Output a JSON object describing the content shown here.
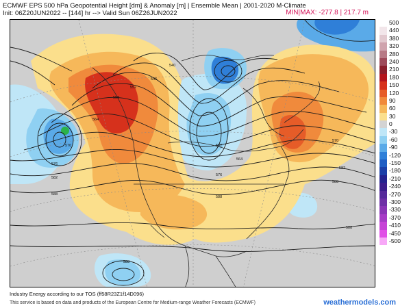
{
  "header": {
    "title": "ECMWF EPS 500 hPa Geopotential Height [dm] & Anomaly [m] | Ensemble Mean | 2001-2020 M-Climate",
    "init": "Init: 06Z20JUN2022 -- [144] hr --> Valid Sun 06Z26JUN2022",
    "minmax": "MIN|MAX: -277.8 | 217.7 m"
  },
  "legend": {
    "entries": [
      {
        "label": "500",
        "color": "#ffffff"
      },
      {
        "label": "440",
        "color": "#f2e6ea"
      },
      {
        "label": "380",
        "color": "#e2c9cf"
      },
      {
        "label": "320",
        "color": "#cfa3ad"
      },
      {
        "label": "280",
        "color": "#b77a86"
      },
      {
        "label": "240",
        "color": "#9e4a5a"
      },
      {
        "label": "210",
        "color": "#8b1e2c"
      },
      {
        "label": "180",
        "color": "#b3141d"
      },
      {
        "label": "150",
        "color": "#d6311c"
      },
      {
        "label": "120",
        "color": "#e65c28"
      },
      {
        "label": "90",
        "color": "#f08a3c"
      },
      {
        "label": "60",
        "color": "#f6b85a"
      },
      {
        "label": "30",
        "color": "#fbdf8c"
      },
      {
        "label": "0",
        "color": "#d3d3d3"
      },
      {
        "label": "-30",
        "color": "#bfe6f7"
      },
      {
        "label": "-60",
        "color": "#8fd0f2"
      },
      {
        "label": "-90",
        "color": "#5aaae8"
      },
      {
        "label": "-120",
        "color": "#2f7fd8"
      },
      {
        "label": "-150",
        "color": "#1f5ec4"
      },
      {
        "label": "-180",
        "color": "#1b3fa8"
      },
      {
        "label": "-210",
        "color": "#24238f"
      },
      {
        "label": "-240",
        "color": "#3b1e8c"
      },
      {
        "label": "-270",
        "color": "#552a9a"
      },
      {
        "label": "-300",
        "color": "#6e2fa6"
      },
      {
        "label": "-330",
        "color": "#8a34b6"
      },
      {
        "label": "-370",
        "color": "#a63bc6"
      },
      {
        "label": "-410",
        "color": "#c643d6"
      },
      {
        "label": "-450",
        "color": "#e04fe6"
      },
      {
        "label": "-500",
        "color": "#f7a8f7"
      }
    ]
  },
  "map": {
    "contour_labels": [
      "588",
      "582",
      "576",
      "570",
      "564",
      "558",
      "552",
      "546",
      "540",
      "588",
      "576",
      "564",
      "552",
      "588",
      "582",
      "570",
      "588",
      "588"
    ],
    "colors": {
      "ocean_gray": "#cfcfcf",
      "land_line": "#2a2a2a",
      "contour": "#1a1a1a"
    }
  },
  "credit": "Industry Energy according to our TOS (ff58R23Z1f14D096)",
  "footer": "This service is based on data and products of the European Centre for Medium-range Weather Forecasts (ECMWF)",
  "brand": "weathermodels.com"
}
